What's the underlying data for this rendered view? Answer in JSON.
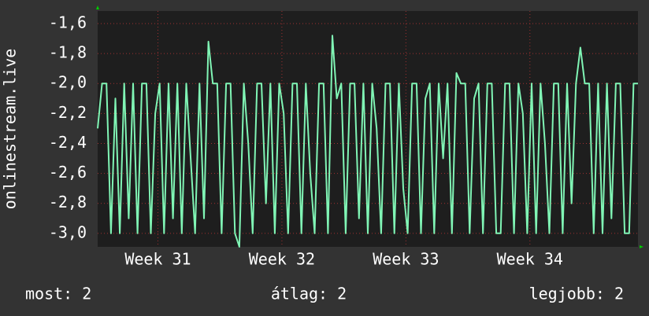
{
  "chart_data": {
    "type": "line",
    "ylabel": "onlinestream.live",
    "x": [
      0,
      0.25,
      0.5,
      0.75,
      1,
      1.25,
      1.5,
      1.75,
      2,
      2.25,
      2.5,
      2.75,
      3,
      3.25,
      3.5,
      3.75,
      4,
      4.25,
      4.5,
      4.75,
      5,
      5.25,
      5.5,
      5.75,
      6,
      6.25,
      6.5,
      6.75,
      7,
      7.25,
      7.5,
      7.75,
      8,
      8.25,
      8.5,
      8.75,
      9,
      9.25,
      9.5,
      9.75,
      10,
      10.25,
      10.5,
      10.75,
      11,
      11.25,
      11.5,
      11.75,
      12,
      12.25,
      12.5,
      12.75,
      13,
      13.25,
      13.5,
      13.75,
      14,
      14.25,
      14.5,
      14.75,
      15,
      15.25,
      15.5,
      15.75,
      16,
      16.25,
      16.5,
      16.75,
      17,
      17.25,
      17.5,
      17.75,
      18,
      18.25,
      18.5,
      18.75,
      19,
      19.25,
      19.5,
      19.75,
      20,
      20.25,
      20.5,
      20.75,
      21,
      21.25,
      21.5,
      21.75,
      22,
      22.25,
      22.5,
      22.75,
      23,
      23.25,
      23.5,
      23.75,
      24,
      24.25,
      24.5,
      24.75,
      25,
      25.25,
      25.5,
      25.75,
      26,
      26.25,
      26.5,
      26.75,
      27,
      27.25,
      27.5,
      27.75,
      28,
      28.25,
      28.5,
      28.75,
      29,
      29.25,
      29.5,
      29.75,
      30,
      30.25,
      30.5
    ],
    "series": [
      {
        "color": "#80f5b5",
        "values": [
          -2.3,
          -2.0,
          -2.0,
          -3.0,
          -2.1,
          -3.0,
          -2.0,
          -2.9,
          -2.0,
          -3.0,
          -2.0,
          -2.0,
          -3.0,
          -2.2,
          -2.0,
          -3.0,
          -2.0,
          -2.9,
          -2.0,
          -3.0,
          -2.0,
          -2.5,
          -3.0,
          -2.0,
          -2.9,
          -1.72,
          -2.0,
          -2.0,
          -3.0,
          -2.0,
          -2.0,
          -3.0,
          -3.09,
          -2.0,
          -2.4,
          -3.0,
          -2.0,
          -2.0,
          -2.8,
          -2.0,
          -3.0,
          -2.0,
          -2.2,
          -3.0,
          -2.0,
          -2.0,
          -3.0,
          -2.0,
          -2.6,
          -3.0,
          -2.0,
          -2.0,
          -3.0,
          -1.68,
          -2.1,
          -2.0,
          -3.0,
          -2.0,
          -2.0,
          -2.9,
          -2.0,
          -3.0,
          -2.0,
          -2.3,
          -3.0,
          -2.0,
          -2.0,
          -3.0,
          -2.0,
          -2.7,
          -3.0,
          -2.0,
          -2.0,
          -3.0,
          -2.1,
          -2.0,
          -3.0,
          -2.0,
          -2.5,
          -2.0,
          -3.0,
          -1.93,
          -2.0,
          -2.0,
          -3.0,
          -2.1,
          -2.0,
          -3.0,
          -2.0,
          -2.0,
          -3.0,
          -3.0,
          -2.0,
          -2.0,
          -3.0,
          -2.0,
          -2.2,
          -3.0,
          -2.0,
          -3.0,
          -2.0,
          -2.4,
          -3.0,
          -2.0,
          -2.0,
          -3.0,
          -2.0,
          -2.8,
          -2.0,
          -1.76,
          -2.0,
          -2.0,
          -3.0,
          -2.0,
          -3.0,
          -2.0,
          -2.9,
          -2.0,
          -2.0,
          -3.0,
          -3.0,
          -2.0,
          -2.0
        ]
      }
    ],
    "xlim": [
      0,
      30.5
    ],
    "xticks": [
      {
        "value": 3.4,
        "label": "Week 31"
      },
      {
        "value": 10.4,
        "label": "Week 32"
      },
      {
        "value": 17.4,
        "label": "Week 33"
      },
      {
        "value": 24.4,
        "label": "Week 34"
      }
    ],
    "ylim": [
      -3.09,
      -1.516
    ],
    "yticks": [
      {
        "value": -3.0,
        "label": "-3,0"
      },
      {
        "value": -2.8,
        "label": "-2,8"
      },
      {
        "value": -2.6,
        "label": "-2,6"
      },
      {
        "value": -2.4,
        "label": "-2,4"
      },
      {
        "value": -2.2,
        "label": "-2,2"
      },
      {
        "value": -2.0,
        "label": "-2,0"
      },
      {
        "value": -1.8,
        "label": "-1,8"
      },
      {
        "value": -1.6,
        "label": "-1,6"
      }
    ],
    "grid": true,
    "stats": [
      "most: 2",
      "átlag: 2",
      "legjobb: 2"
    ]
  }
}
